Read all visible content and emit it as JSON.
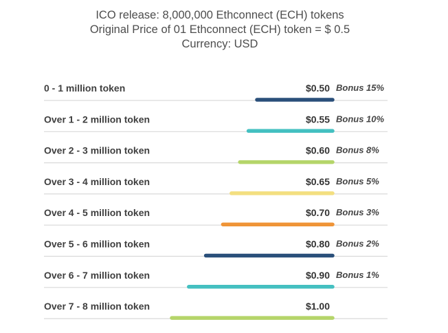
{
  "header": {
    "line1": "ICO release: 8,000,000 Ethconnect (ECH) tokens",
    "line2": "Original Price of 01 Ethconnect (ECH) token = $ 0.5",
    "line3": "Currency: USD"
  },
  "chart_data": {
    "type": "bar",
    "title": "",
    "xlabel": "",
    "ylabel": "",
    "categories": [
      "0 - 1 million token",
      "Over 1 - 2 million token",
      "Over 2 - 3 million token",
      "Over 3 - 4 million token",
      "Over 4 - 5 million token",
      "Over 5 - 6 million token",
      "Over 6 - 7 million token",
      "Over 7 - 8 million token"
    ],
    "values": [
      0.5,
      0.55,
      0.6,
      0.65,
      0.7,
      0.8,
      0.9,
      1.0
    ],
    "price_labels": [
      "$0.50",
      "$0.55",
      "$0.60",
      "$0.65",
      "$0.70",
      "$0.80",
      "$0.90",
      "$1.00"
    ],
    "bonus_labels": [
      "Bonus 15%",
      "Bonus 10%",
      "Bonus 8%",
      "Bonus 5%",
      "Bonus 3%",
      "Bonus 2%",
      "Bonus 1%",
      ""
    ],
    "colors": [
      "#2a4f7a",
      "#44c0c1",
      "#b5d56a",
      "#f3df80",
      "#ef9437",
      "#2a4f7a",
      "#44c0c1",
      "#b5d56a"
    ],
    "grid": false,
    "legend": "none"
  }
}
